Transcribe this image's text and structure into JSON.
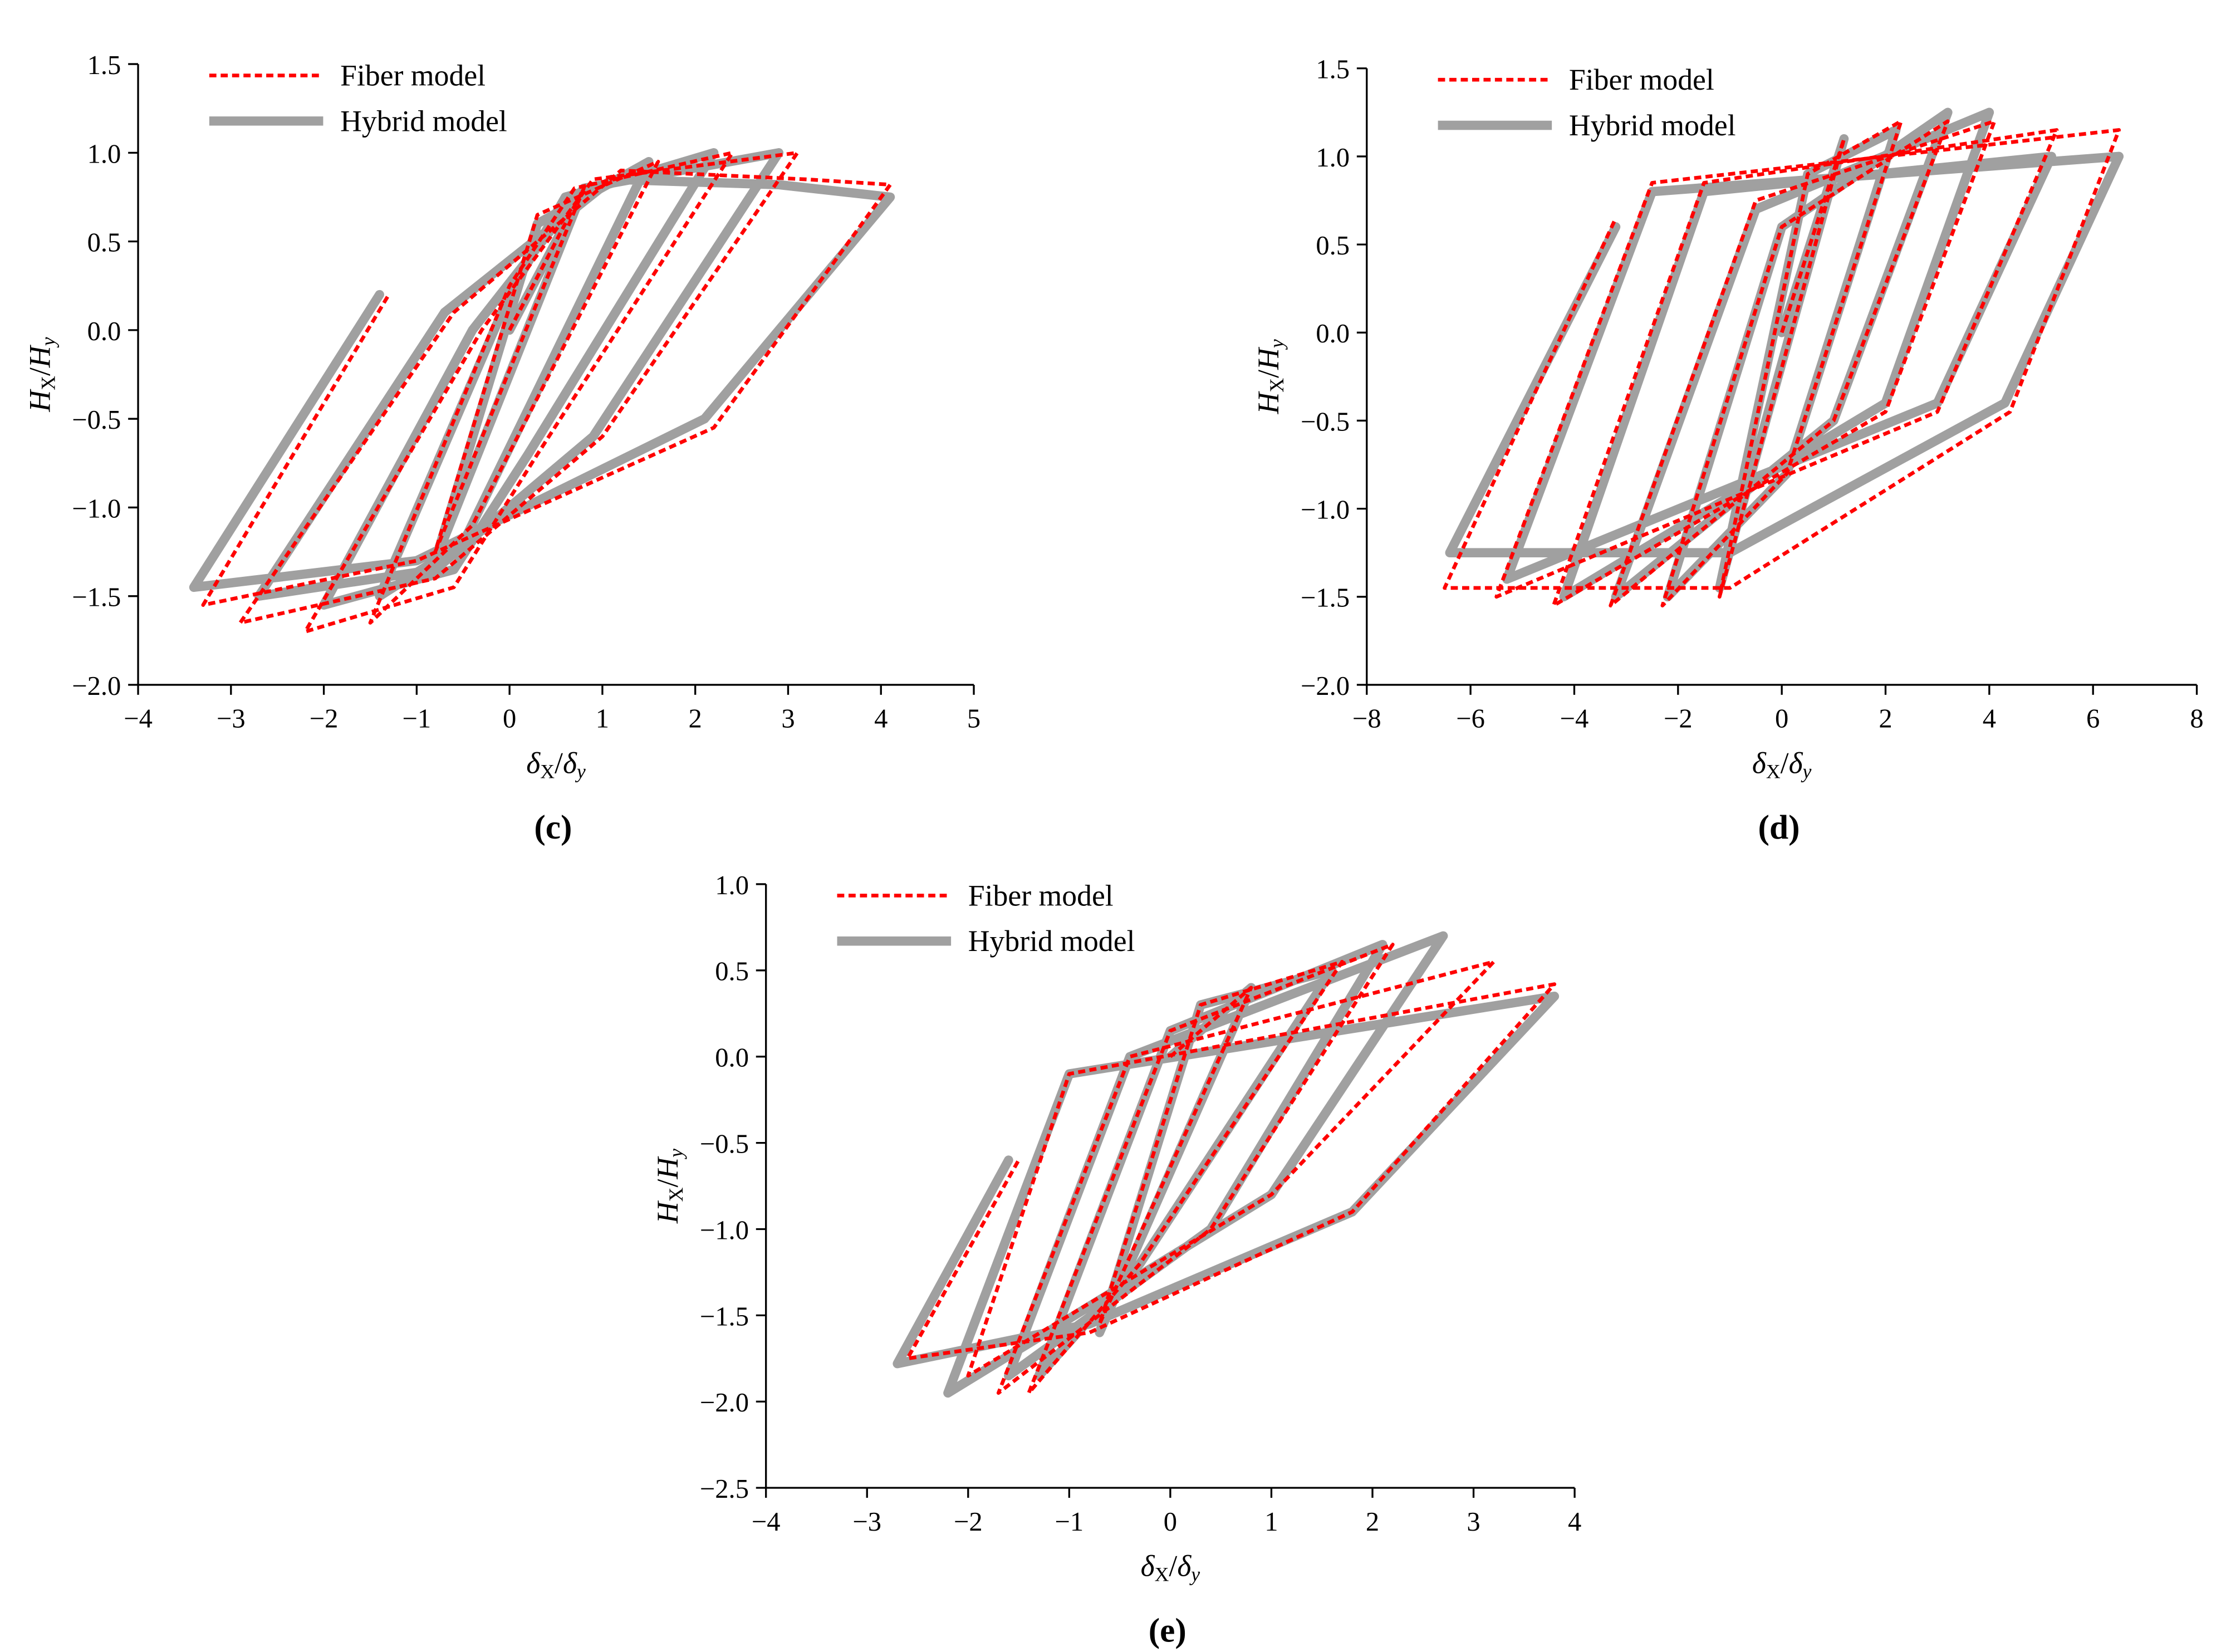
{
  "chart_data": [
    {
      "type": "line",
      "panel_label": "(c)",
      "xlabel": [
        "δ",
        "X",
        "/",
        "δ",
        "y"
      ],
      "ylabel": [
        "H",
        "X",
        "/",
        "H",
        "y"
      ],
      "xlim": [
        -4,
        5
      ],
      "ylim": [
        -2,
        1.5
      ],
      "xticks": [
        {
          "value": -4,
          "label": "−4"
        },
        {
          "value": -3,
          "label": "−3"
        },
        {
          "value": -2,
          "label": "−2"
        },
        {
          "value": -1,
          "label": "−1"
        },
        0,
        1,
        2,
        3,
        4,
        5
      ],
      "yticks": [
        {
          "value": -2,
          "label": "−2.0"
        },
        {
          "value": -1.5,
          "label": "−1.5"
        },
        {
          "value": -1,
          "label": "−1.0"
        },
        {
          "value": -0.5,
          "label": "−0.5"
        },
        {
          "value": 0,
          "label": "0.0"
        },
        0.5,
        {
          "value": 1,
          "label": "1.0"
        },
        1.5
      ],
      "series": [
        {
          "name": "Fiber model",
          "color": "#ff0000",
          "style": "dashed",
          "x": [
            0,
            0.8,
            -0.8,
            0.3,
            1.6,
            -0.4,
            -1.5,
            0.0,
            0.7,
            2.4,
            0.3,
            -0.6,
            -2.2,
            -0.3,
            0.9,
            3.1,
            1.0,
            -0.8,
            -2.9,
            -0.6,
            1.2,
            3.2,
            4.1,
            2.2,
            -1.0,
            -3.3,
            -1.3
          ],
          "values": [
            0,
            0.8,
            -1.25,
            0.65,
            0.95,
            -1.1,
            -1.65,
            0.25,
            0.8,
            1.0,
            -0.7,
            -1.45,
            -1.7,
            0.0,
            0.85,
            1.0,
            -0.6,
            -1.4,
            -1.65,
            0.1,
            0.9,
            0.85,
            0.82,
            -0.55,
            -1.3,
            -1.55,
            0.2
          ]
        },
        {
          "name": "Hybrid model",
          "color": "#a0a0a0",
          "style": "solid",
          "x": [
            0,
            0.8,
            -0.8,
            0.3,
            1.5,
            -0.5,
            -1.4,
            0.0,
            0.6,
            2.2,
            0.2,
            -0.6,
            -2.0,
            -0.4,
            0.8,
            2.9,
            0.9,
            -0.8,
            -2.7,
            -0.7,
            1.1,
            2.9,
            4.1,
            2.1,
            -1.0,
            -3.4,
            -1.4
          ],
          "values": [
            0,
            0.8,
            -1.3,
            0.6,
            0.95,
            -1.2,
            -1.5,
            0.2,
            0.75,
            1.0,
            -0.7,
            -1.35,
            -1.55,
            0.0,
            0.8,
            1.0,
            -0.6,
            -1.35,
            -1.5,
            0.1,
            0.85,
            0.82,
            0.75,
            -0.5,
            -1.3,
            -1.45,
            0.2
          ]
        }
      ]
    },
    {
      "type": "line",
      "panel_label": "(d)",
      "xlabel": [
        "δ",
        "X",
        "/",
        "δ",
        "y"
      ],
      "ylabel": [
        "H",
        "X",
        "/",
        "H",
        "y"
      ],
      "xlim": [
        -8,
        8
      ],
      "ylim": [
        -2,
        1.5
      ],
      "xticks": [
        {
          "value": -8,
          "label": "−8"
        },
        {
          "value": -6,
          "label": "−6"
        },
        {
          "value": -4,
          "label": "−4"
        },
        {
          "value": -2,
          "label": "−2"
        },
        0,
        2,
        4,
        6,
        8
      ],
      "yticks": [
        {
          "value": -2,
          "label": "−2.0"
        },
        {
          "value": -1.5,
          "label": "−1.5"
        },
        {
          "value": -1,
          "label": "−1.0"
        },
        {
          "value": -0.5,
          "label": "−0.5"
        },
        {
          "value": 0,
          "label": "0.0"
        },
        0.5,
        {
          "value": 1,
          "label": "1.0"
        },
        1.5
      ],
      "series": [
        {
          "name": "Fiber model",
          "color": "#ff0000",
          "style": "dashed",
          "x": [
            0,
            1.2,
            -1.2,
            0.5,
            2.3,
            0.1,
            -2.3,
            0.0,
            3.2,
            1.0,
            -3.3,
            -0.5,
            4.1,
            2.0,
            -4.4,
            -1.5,
            5.3,
            3.0,
            -5.5,
            -2.5,
            6.5,
            4.4,
            -1.0,
            -6.5,
            -3.2
          ],
          "values": [
            0,
            1.1,
            -1.5,
            0.9,
            1.2,
            -0.8,
            -1.55,
            0.6,
            1.2,
            -0.5,
            -1.55,
            0.75,
            1.2,
            -0.45,
            -1.55,
            0.85,
            1.15,
            -0.45,
            -1.5,
            0.85,
            1.15,
            -0.45,
            -1.45,
            -1.45,
            0.65
          ]
        },
        {
          "name": "Hybrid model",
          "color": "#a0a0a0",
          "style": "solid",
          "x": [
            0,
            1.2,
            -1.2,
            0.5,
            2.2,
            0.1,
            -2.2,
            0.0,
            3.2,
            1.0,
            -3.2,
            -0.5,
            4.0,
            2.0,
            -4.2,
            -1.5,
            5.2,
            3.0,
            -5.3,
            -2.5,
            6.5,
            4.3,
            -1.0,
            -6.4,
            -3.2
          ],
          "values": [
            0,
            1.1,
            -1.45,
            0.9,
            1.15,
            -0.8,
            -1.5,
            0.6,
            1.25,
            -0.5,
            -1.5,
            0.7,
            1.25,
            -0.4,
            -1.5,
            0.8,
            1.0,
            -0.4,
            -1.4,
            0.8,
            1.0,
            -0.4,
            -1.25,
            -1.25,
            0.6
          ]
        }
      ]
    },
    {
      "type": "line",
      "panel_label": "(e)",
      "xlabel": [
        "δ",
        "X",
        "/",
        "δ",
        "y"
      ],
      "ylabel": [
        "H",
        "X",
        "/",
        "H",
        "y"
      ],
      "xlim": [
        -4,
        4
      ],
      "ylim": [
        -2.5,
        1
      ],
      "xticks": [
        {
          "value": -4,
          "label": "−4"
        },
        {
          "value": -3,
          "label": "−3"
        },
        {
          "value": -2,
          "label": "−2"
        },
        {
          "value": -1,
          "label": "−1"
        },
        0,
        1,
        2,
        3,
        4
      ],
      "yticks": [
        {
          "value": -2.5,
          "label": "−2.5"
        },
        {
          "value": -2,
          "label": "−2.0"
        },
        {
          "value": -1.5,
          "label": "−1.5"
        },
        {
          "value": -1,
          "label": "−1.0"
        },
        {
          "value": -0.5,
          "label": "−0.5"
        },
        {
          "value": 0,
          "label": "0.0"
        },
        0.5,
        {
          "value": 1,
          "label": "1.0"
        }
      ],
      "series": [
        {
          "name": "Fiber model",
          "color": "#ff0000",
          "style": "dashed",
          "x": [
            0,
            0.8,
            -0.7,
            0.3,
            1.7,
            -0.3,
            -1.4,
            0.0,
            2.2,
            0.4,
            -1.7,
            -0.4,
            3.2,
            1.0,
            -2.0,
            -1.0,
            3.8,
            1.8,
            -0.8,
            -2.6,
            -1.5
          ],
          "values": [
            0,
            0.4,
            -1.55,
            0.3,
            0.55,
            -1.2,
            -1.95,
            0.15,
            0.65,
            -1.0,
            -1.95,
            0.0,
            0.55,
            -0.8,
            -1.85,
            -0.1,
            0.42,
            -0.9,
            -1.6,
            -1.75,
            -0.6
          ]
        },
        {
          "name": "Hybrid model",
          "color": "#a0a0a0",
          "style": "solid",
          "x": [
            0,
            0.8,
            -0.7,
            0.3,
            1.6,
            -0.3,
            -1.3,
            0.0,
            2.1,
            0.4,
            -1.6,
            -0.4,
            2.7,
            1.0,
            -2.2,
            -1.0,
            3.8,
            1.8,
            -0.8,
            -2.7,
            -1.6
          ],
          "values": [
            0,
            0.4,
            -1.6,
            0.3,
            0.5,
            -1.2,
            -1.85,
            0.15,
            0.65,
            -1.0,
            -1.85,
            0.0,
            0.7,
            -0.8,
            -1.95,
            -0.1,
            0.35,
            -0.9,
            -1.55,
            -1.78,
            -0.6
          ]
        }
      ]
    }
  ]
}
